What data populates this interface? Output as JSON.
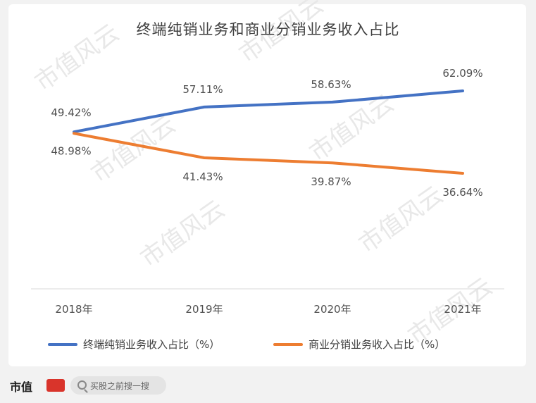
{
  "chart_data": {
    "type": "line",
    "title": "终端纯销业务和商业分销业务收入占比",
    "categories": [
      "2018年",
      "2019年",
      "2020年",
      "2021年"
    ],
    "series": [
      {
        "name": "终端纯销业务收入占比（%）",
        "color": "#4472c4",
        "values": [
          49.42,
          57.11,
          58.63,
          62.09
        ],
        "labels": [
          "49.42%",
          "57.11%",
          "58.63%",
          "62.09%"
        ]
      },
      {
        "name": "商业分销业务收入占比（%）",
        "color": "#ed7d31",
        "values": [
          48.98,
          41.43,
          39.87,
          36.64
        ],
        "labels": [
          "48.98%",
          "41.43%",
          "39.87%",
          "36.64%"
        ]
      }
    ],
    "ylim": [
      0,
      100
    ],
    "grid": false,
    "legend_position": "bottom"
  },
  "watermark": {
    "text": "市值风云"
  },
  "footer": {
    "brand": "市值",
    "search_placeholder": "买股之前搜一搜"
  }
}
